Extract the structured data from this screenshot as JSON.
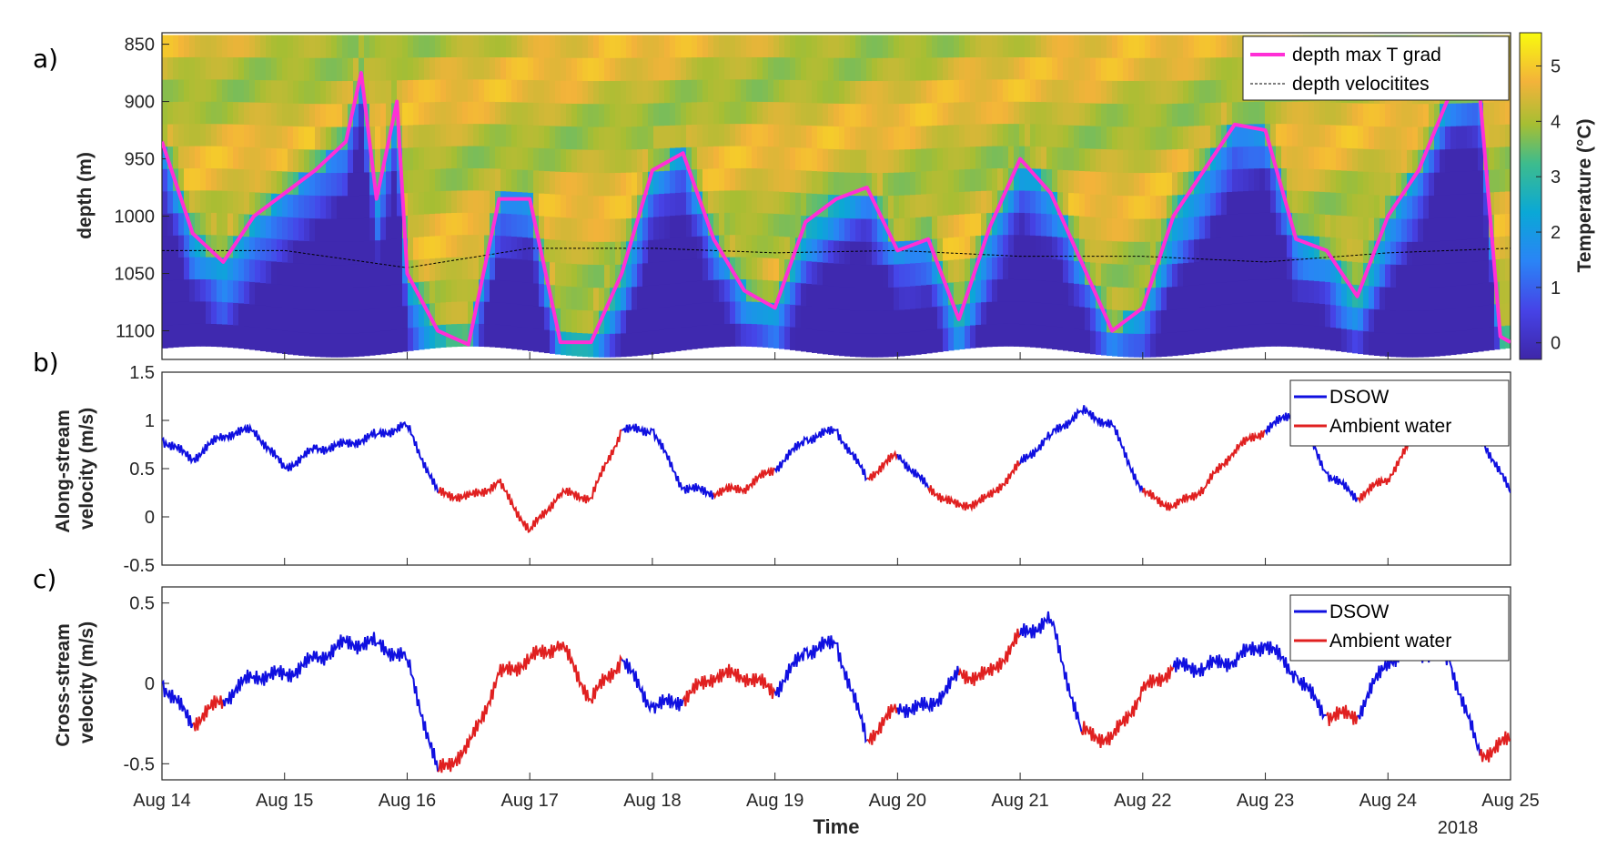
{
  "panel_labels": [
    "a)",
    "b)",
    "c)"
  ],
  "colors": {
    "dsow": "#1010e0",
    "ambient": "#e02020",
    "max_t_grad": "#ff2fd6",
    "velocities": "#000000",
    "axes": "#262626"
  },
  "chart_data": [
    {
      "type": "heatmap",
      "panel": "a)",
      "xlabel": "",
      "ylabel": "depth (m)",
      "ylim": [
        840,
        1125
      ],
      "y_reversed": true,
      "yticks": [
        850,
        900,
        950,
        1000,
        1050,
        1100
      ],
      "x_range_days": [
        "Aug 14",
        "Aug 25"
      ],
      "colorbar": {
        "label": "Temperature (°C)",
        "range": [
          -0.3,
          5.6
        ],
        "ticks": [
          0,
          1,
          2,
          3,
          4,
          5
        ],
        "colormap": "parula"
      },
      "legend": {
        "position": "top-right",
        "entries": [
          "depth max T grad",
          "depth velocitites"
        ]
      },
      "series": [
        {
          "name": "depth max T grad",
          "x": [
            "Aug 14 00:00",
            "Aug 14 06:00",
            "Aug 14 12:00",
            "Aug 14 18:00",
            "Aug 15 00:00",
            "Aug 15 06:00",
            "Aug 15 12:00",
            "Aug 15 15:00",
            "Aug 15 18:00",
            "Aug 15 22:00",
            "Aug 16 00:00",
            "Aug 16 06:00",
            "Aug 16 12:00",
            "Aug 16 18:00",
            "Aug 17 00:00",
            "Aug 17 06:00",
            "Aug 17 12:00",
            "Aug 17 18:00",
            "Aug 18 00:00",
            "Aug 18 06:00",
            "Aug 18 12:00",
            "Aug 18 18:00",
            "Aug 19 00:00",
            "Aug 19 06:00",
            "Aug 19 12:00",
            "Aug 19 18:00",
            "Aug 20 00:00",
            "Aug 20 06:00",
            "Aug 20 12:00",
            "Aug 20 18:00",
            "Aug 21 00:00",
            "Aug 21 06:00",
            "Aug 21 12:00",
            "Aug 21 18:00",
            "Aug 22 00:00",
            "Aug 22 06:00",
            "Aug 22 12:00",
            "Aug 22 18:00",
            "Aug 23 00:00",
            "Aug 23 06:00",
            "Aug 23 12:00",
            "Aug 23 18:00",
            "Aug 24 00:00",
            "Aug 24 06:00",
            "Aug 24 12:00",
            "Aug 24 18:00",
            "Aug 24 22:00",
            "Aug 25 00:00"
          ],
          "y": [
            935,
            1015,
            1040,
            1000,
            980,
            960,
            935,
            875,
            985,
            900,
            1050,
            1100,
            1112,
            985,
            985,
            1110,
            1110,
            1050,
            960,
            945,
            1020,
            1065,
            1080,
            1005,
            985,
            975,
            1030,
            1020,
            1090,
            1010,
            950,
            980,
            1040,
            1100,
            1080,
            1000,
            960,
            920,
            925,
            1020,
            1030,
            1070,
            1000,
            960,
            895,
            895,
            1105,
            1110
          ]
        },
        {
          "name": "depth velocitites",
          "x": [
            "Aug 14",
            "Aug 15",
            "Aug 16",
            "Aug 17",
            "Aug 18",
            "Aug 19",
            "Aug 20",
            "Aug 21",
            "Aug 22",
            "Aug 23",
            "Aug 24",
            "Aug 25"
          ],
          "y": [
            1030,
            1030,
            1045,
            1028,
            1028,
            1032,
            1030,
            1035,
            1035,
            1040,
            1032,
            1028
          ]
        }
      ]
    },
    {
      "type": "line",
      "panel": "b)",
      "xlabel": "",
      "ylabel": "Along-stream velocity (m/s)",
      "ylim": [
        -0.5,
        1.5
      ],
      "yticks": [
        "1.5",
        "1",
        "0.5",
        "0",
        "-0.5"
      ],
      "legend": {
        "position": "top-right",
        "entries": [
          "DSOW",
          "Ambient water"
        ]
      },
      "x": [
        "Aug 14 00:00",
        "Aug 14 06:00",
        "Aug 14 12:00",
        "Aug 14 18:00",
        "Aug 15 00:00",
        "Aug 15 06:00",
        "Aug 15 12:00",
        "Aug 15 18:00",
        "Aug 16 00:00",
        "Aug 16 06:00",
        "Aug 16 12:00",
        "Aug 16 18:00",
        "Aug 17 00:00",
        "Aug 17 06:00",
        "Aug 17 12:00",
        "Aug 17 18:00",
        "Aug 18 00:00",
        "Aug 18 06:00",
        "Aug 18 12:00",
        "Aug 18 18:00",
        "Aug 19 00:00",
        "Aug 19 06:00",
        "Aug 19 12:00",
        "Aug 19 18:00",
        "Aug 20 00:00",
        "Aug 20 06:00",
        "Aug 20 12:00",
        "Aug 20 18:00",
        "Aug 21 00:00",
        "Aug 21 06:00",
        "Aug 21 12:00",
        "Aug 21 18:00",
        "Aug 22 00:00",
        "Aug 22 06:00",
        "Aug 22 12:00",
        "Aug 22 18:00",
        "Aug 23 00:00",
        "Aug 23 06:00",
        "Aug 23 12:00",
        "Aug 23 18:00",
        "Aug 24 00:00",
        "Aug 24 06:00",
        "Aug 24 12:00",
        "Aug 24 18:00",
        "Aug 25 00:00"
      ],
      "values": [
        0.8,
        0.6,
        0.85,
        0.9,
        0.5,
        0.7,
        0.75,
        0.85,
        0.95,
        0.25,
        0.2,
        0.35,
        -0.15,
        0.25,
        0.2,
        0.9,
        0.9,
        0.3,
        0.25,
        0.3,
        0.5,
        0.8,
        0.9,
        0.4,
        0.65,
        0.3,
        0.1,
        0.2,
        0.55,
        0.85,
        1.1,
        0.95,
        0.25,
        0.1,
        0.3,
        0.7,
        0.9,
        1.1,
        0.45,
        0.2,
        0.4,
        0.9,
        0.8,
        0.85,
        0.25
      ],
      "classes": [
        "DSOW",
        "DSOW",
        "DSOW",
        "DSOW",
        "DSOW",
        "DSOW",
        "DSOW",
        "DSOW",
        "DSOW",
        "Ambient water",
        "Ambient water",
        "Ambient water",
        "Ambient water",
        "Ambient water",
        "Ambient water",
        "DSOW",
        "DSOW",
        "DSOW",
        "Ambient water",
        "Ambient water",
        "DSOW",
        "DSOW",
        "DSOW",
        "Ambient water",
        "DSOW",
        "Ambient water",
        "Ambient water",
        "Ambient water",
        "DSOW",
        "DSOW",
        "DSOW",
        "DSOW",
        "Ambient water",
        "Ambient water",
        "Ambient water",
        "Ambient water",
        "DSOW",
        "DSOW",
        "DSOW",
        "Ambient water",
        "Ambient water",
        "DSOW",
        "DSOW",
        "DSOW",
        "Ambient water"
      ]
    },
    {
      "type": "line",
      "panel": "c)",
      "xlabel": "Time",
      "ylabel": "Cross-stream velocity (m/s)",
      "ylim": [
        -0.6,
        0.6
      ],
      "yticks": [
        "0.5",
        "0",
        "-0.5"
      ],
      "xticks": [
        "Aug 14",
        "Aug 15",
        "Aug 16",
        "Aug 17",
        "Aug 18",
        "Aug 19",
        "Aug 20",
        "Aug 21",
        "Aug 22",
        "Aug 23",
        "Aug 24",
        "Aug 25"
      ],
      "year_label": "2018",
      "legend": {
        "position": "top-right",
        "entries": [
          "DSOW",
          "Ambient water"
        ]
      },
      "x": [
        "Aug 14 00:00",
        "Aug 14 06:00",
        "Aug 14 12:00",
        "Aug 14 18:00",
        "Aug 15 00:00",
        "Aug 15 06:00",
        "Aug 15 12:00",
        "Aug 15 18:00",
        "Aug 16 00:00",
        "Aug 16 06:00",
        "Aug 16 12:00",
        "Aug 16 18:00",
        "Aug 17 00:00",
        "Aug 17 06:00",
        "Aug 17 12:00",
        "Aug 17 18:00",
        "Aug 18 00:00",
        "Aug 18 06:00",
        "Aug 18 12:00",
        "Aug 18 18:00",
        "Aug 19 00:00",
        "Aug 19 06:00",
        "Aug 19 12:00",
        "Aug 19 18:00",
        "Aug 20 00:00",
        "Aug 20 06:00",
        "Aug 20 12:00",
        "Aug 20 18:00",
        "Aug 21 00:00",
        "Aug 21 06:00",
        "Aug 21 12:00",
        "Aug 21 18:00",
        "Aug 22 00:00",
        "Aug 22 06:00",
        "Aug 22 12:00",
        "Aug 22 18:00",
        "Aug 23 00:00",
        "Aug 23 06:00",
        "Aug 23 12:00",
        "Aug 23 18:00",
        "Aug 24 00:00",
        "Aug 24 06:00",
        "Aug 24 12:00",
        "Aug 24 18:00",
        "Aug 25 00:00"
      ],
      "values": [
        0.0,
        -0.25,
        -0.1,
        0.05,
        0.05,
        0.15,
        0.25,
        0.25,
        0.15,
        -0.55,
        -0.4,
        0.05,
        0.15,
        0.25,
        -0.1,
        0.15,
        -0.15,
        -0.1,
        0.05,
        0.05,
        -0.05,
        0.2,
        0.25,
        -0.35,
        -0.15,
        -0.15,
        0.05,
        0.05,
        0.3,
        0.4,
        -0.3,
        -0.35,
        -0.05,
        0.1,
        0.1,
        0.15,
        0.25,
        0.05,
        -0.2,
        -0.2,
        0.15,
        0.2,
        0.15,
        -0.45,
        -0.35
      ],
      "classes": [
        "DSOW",
        "Ambient water",
        "DSOW",
        "DSOW",
        "DSOW",
        "DSOW",
        "DSOW",
        "DSOW",
        "DSOW",
        "Ambient water",
        "Ambient water",
        "Ambient water",
        "Ambient water",
        "Ambient water",
        "Ambient water",
        "DSOW",
        "DSOW",
        "Ambient water",
        "Ambient water",
        "Ambient water",
        "DSOW",
        "DSOW",
        "DSOW",
        "Ambient water",
        "DSOW",
        "DSOW",
        "Ambient water",
        "Ambient water",
        "DSOW",
        "DSOW",
        "Ambient water",
        "Ambient water",
        "Ambient water",
        "DSOW",
        "DSOW",
        "DSOW",
        "DSOW",
        "DSOW",
        "Ambient water",
        "DSOW",
        "DSOW",
        "DSOW",
        "DSOW",
        "Ambient water",
        "Ambient water"
      ]
    }
  ]
}
